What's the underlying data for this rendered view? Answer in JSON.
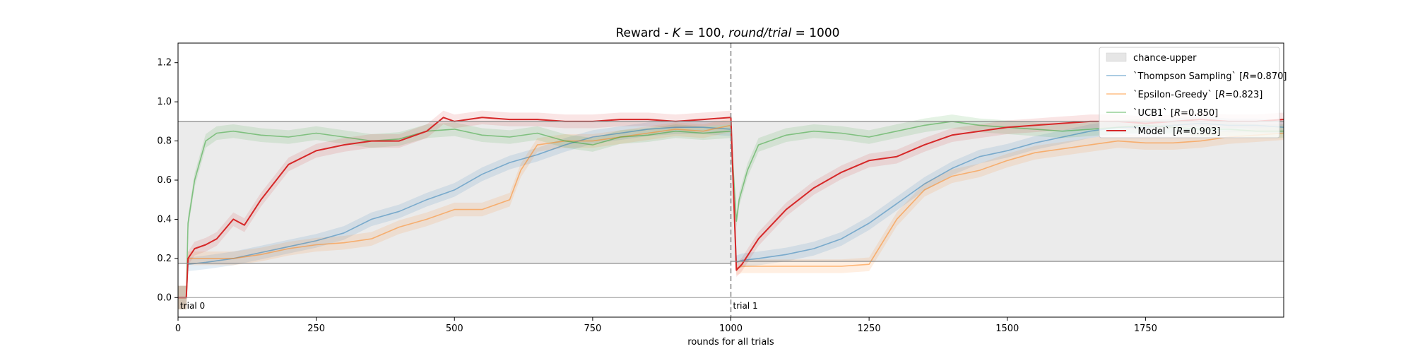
{
  "chart_data": {
    "type": "line",
    "title": "Reward - K = 100, round/trial = 1000",
    "title_parts": {
      "prefix": "Reward - ",
      "k_symbol": "K",
      "k_eq": " = 100, ",
      "round_trial": "round/trial",
      "rt_eq": " = 1000"
    },
    "xlabel": "rounds for all trials",
    "ylabel": "",
    "xlim": [
      0,
      2000
    ],
    "ylim": [
      -0.1,
      1.3
    ],
    "xticks": [
      0,
      250,
      500,
      750,
      1000,
      1250,
      1500,
      1750
    ],
    "yticks": [
      0.0,
      0.2,
      0.4,
      0.6,
      0.8,
      1.0,
      1.2
    ],
    "grid": false,
    "legend_position": "top-right",
    "trial_boundary_x": 1000,
    "trial_labels": [
      {
        "text": "trial 0",
        "x": 0
      },
      {
        "text": "trial 1",
        "x": 1000
      }
    ],
    "chance_band": {
      "name": "chance-upper",
      "color": "#e6e6e6",
      "segments": [
        {
          "x0": 0,
          "x1": 1000,
          "lower": 0.175,
          "upper": 0.9
        },
        {
          "x0": 1000,
          "x1": 2000,
          "lower": 0.185,
          "upper": 0.9
        }
      ]
    },
    "series": [
      {
        "name": "`Thompson Sampling` [",
        "r_value": "=0.870]",
        "color": "#1f77b4",
        "alpha": 0.5,
        "x": [
          0,
          15,
          18,
          50,
          100,
          150,
          200,
          250,
          300,
          350,
          400,
          450,
          500,
          550,
          600,
          650,
          700,
          750,
          800,
          850,
          900,
          950,
          1000,
          1010,
          1020,
          1050,
          1100,
          1150,
          1200,
          1250,
          1300,
          1350,
          1400,
          1450,
          1500,
          1550,
          1600,
          1650,
          1700,
          1750,
          1800,
          1850,
          1900,
          1950,
          2000
        ],
        "y": [
          0.0,
          0.0,
          0.17,
          0.18,
          0.2,
          0.23,
          0.26,
          0.29,
          0.33,
          0.4,
          0.44,
          0.5,
          0.55,
          0.63,
          0.69,
          0.73,
          0.78,
          0.82,
          0.84,
          0.86,
          0.87,
          0.87,
          0.86,
          0.18,
          0.19,
          0.2,
          0.22,
          0.25,
          0.3,
          0.38,
          0.48,
          0.58,
          0.66,
          0.72,
          0.75,
          0.79,
          0.82,
          0.85,
          0.87,
          0.87,
          0.88,
          0.89,
          0.88,
          0.88,
          0.87
        ]
      },
      {
        "name": "`Epsilon-Greedy` [",
        "r_value": "=0.823]",
        "color": "#ff7f0e",
        "alpha": 0.5,
        "x": [
          0,
          15,
          18,
          50,
          100,
          150,
          200,
          250,
          300,
          350,
          400,
          450,
          500,
          550,
          600,
          620,
          650,
          700,
          750,
          800,
          850,
          900,
          950,
          1000,
          1010,
          1020,
          1050,
          1100,
          1150,
          1200,
          1250,
          1300,
          1350,
          1400,
          1450,
          1500,
          1550,
          1600,
          1650,
          1700,
          1750,
          1800,
          1850,
          1900,
          1950,
          2000
        ],
        "y": [
          0.0,
          0.0,
          0.2,
          0.2,
          0.2,
          0.22,
          0.25,
          0.27,
          0.28,
          0.3,
          0.36,
          0.4,
          0.45,
          0.45,
          0.5,
          0.65,
          0.78,
          0.8,
          0.8,
          0.82,
          0.84,
          0.86,
          0.85,
          0.88,
          0.15,
          0.16,
          0.16,
          0.16,
          0.16,
          0.16,
          0.17,
          0.4,
          0.55,
          0.62,
          0.65,
          0.7,
          0.74,
          0.76,
          0.78,
          0.8,
          0.79,
          0.79,
          0.8,
          0.82,
          0.83,
          0.84
        ]
      },
      {
        "name": "`UCB1` [",
        "r_value": "=0.850]",
        "color": "#2ca02c",
        "alpha": 0.5,
        "x": [
          0,
          15,
          18,
          30,
          50,
          70,
          100,
          150,
          200,
          250,
          300,
          350,
          400,
          450,
          500,
          550,
          600,
          650,
          700,
          750,
          800,
          850,
          900,
          950,
          1000,
          1010,
          1015,
          1030,
          1050,
          1100,
          1150,
          1200,
          1250,
          1300,
          1350,
          1400,
          1450,
          1500,
          1550,
          1600,
          1650,
          1700,
          1750,
          1800,
          1850,
          1900,
          1950,
          2000
        ],
        "y": [
          0.0,
          0.0,
          0.38,
          0.6,
          0.8,
          0.84,
          0.85,
          0.83,
          0.82,
          0.84,
          0.82,
          0.8,
          0.81,
          0.85,
          0.86,
          0.83,
          0.82,
          0.84,
          0.8,
          0.78,
          0.82,
          0.83,
          0.85,
          0.84,
          0.85,
          0.39,
          0.5,
          0.65,
          0.78,
          0.83,
          0.85,
          0.84,
          0.82,
          0.85,
          0.88,
          0.9,
          0.88,
          0.87,
          0.86,
          0.85,
          0.86,
          0.87,
          0.88,
          0.87,
          0.86,
          0.86,
          0.85,
          0.85
        ]
      },
      {
        "name": "`Model` [",
        "r_value": "=0.903]",
        "color": "#d62728",
        "alpha": 1.0,
        "x": [
          0,
          15,
          18,
          30,
          50,
          70,
          100,
          120,
          150,
          200,
          250,
          300,
          350,
          400,
          450,
          480,
          500,
          550,
          600,
          650,
          700,
          750,
          800,
          850,
          900,
          950,
          1000,
          1010,
          1020,
          1050,
          1100,
          1150,
          1200,
          1250,
          1300,
          1350,
          1400,
          1450,
          1500,
          1550,
          1600,
          1650,
          1700,
          1750,
          1800,
          1850,
          1900,
          1950,
          2000
        ],
        "y": [
          0.0,
          0.0,
          0.2,
          0.25,
          0.27,
          0.3,
          0.4,
          0.37,
          0.5,
          0.68,
          0.75,
          0.78,
          0.8,
          0.8,
          0.85,
          0.92,
          0.9,
          0.92,
          0.91,
          0.91,
          0.9,
          0.9,
          0.91,
          0.91,
          0.9,
          0.91,
          0.92,
          0.14,
          0.17,
          0.3,
          0.45,
          0.56,
          0.64,
          0.7,
          0.72,
          0.78,
          0.83,
          0.85,
          0.87,
          0.88,
          0.89,
          0.9,
          0.9,
          0.89,
          0.9,
          0.91,
          0.9,
          0.9,
          0.91
        ]
      }
    ],
    "legend_r_symbol": "R"
  }
}
